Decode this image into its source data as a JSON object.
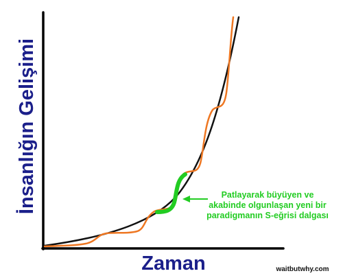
{
  "labels": {
    "y_axis": "İnsanlığın Gelişimi",
    "x_axis": "Zaman",
    "annotation_lines": [
      "Patlayarak büyüyen ve",
      "akabinde olgunlaşan yeni bir",
      "paradigmanın S-eğrisi dalgası"
    ],
    "credit": "waitbutwhy.com"
  },
  "colors": {
    "axes": "#000000",
    "smooth_curve": "#111111",
    "wavy_curve": "#ee7722",
    "highlight": "#22cc22",
    "label_text": "#1b1f8a",
    "annotation_text": "#22cc22"
  }
}
